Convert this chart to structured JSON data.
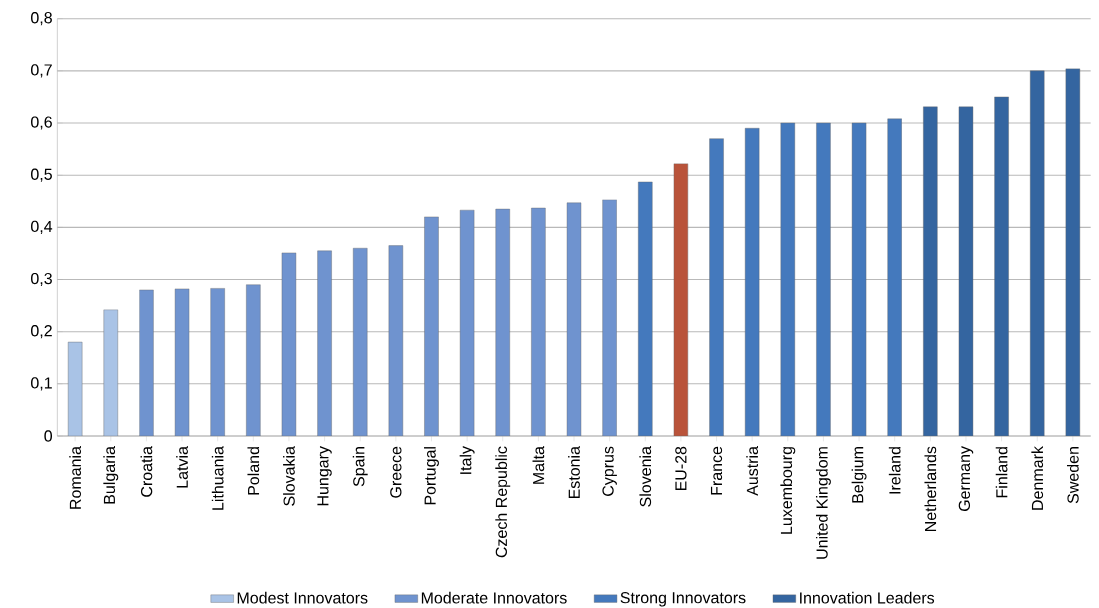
{
  "chart_data": {
    "type": "bar",
    "categories": [
      "Romania",
      "Bulgaria",
      "Croatia",
      "Latvia",
      "Lithuania",
      "Poland",
      "Slovakia",
      "Hungary",
      "Spain",
      "Greece",
      "Portugal",
      "Italy",
      "Czech Republic",
      "Malta",
      "Estonia",
      "Cyprus",
      "Slovenia",
      "EU-28",
      "France",
      "Austria",
      "Luxembourg",
      "United Kingdom",
      "Belgium",
      "Ireland",
      "Netherlands",
      "Germany",
      "Finland",
      "Denmark",
      "Sweden"
    ],
    "series": [
      {
        "name": "Modest Innovators",
        "color": "#a9c3e6",
        "values": [
          0.18,
          0.242,
          null,
          null,
          null,
          null,
          null,
          null,
          null,
          null,
          null,
          null,
          null,
          null,
          null,
          null,
          null,
          null,
          null,
          null,
          null,
          null,
          null,
          null,
          null,
          null,
          null,
          null,
          null
        ]
      },
      {
        "name": "Moderate Innovators",
        "color": "#6f93cf",
        "values": [
          null,
          null,
          0.28,
          0.282,
          0.283,
          0.29,
          0.351,
          0.355,
          0.36,
          0.365,
          0.42,
          0.433,
          0.435,
          0.437,
          0.447,
          0.453,
          null,
          null,
          null,
          null,
          null,
          null,
          null,
          null,
          null,
          null,
          null,
          null,
          null
        ]
      },
      {
        "name": "Strong Innovators",
        "color": "#4479bd",
        "values": [
          null,
          null,
          null,
          null,
          null,
          null,
          null,
          null,
          null,
          null,
          null,
          null,
          null,
          null,
          null,
          null,
          0.487,
          null,
          0.57,
          0.59,
          0.6,
          0.6,
          0.6,
          0.608,
          null,
          null,
          null,
          null,
          null
        ]
      },
      {
        "name": "Innovation Leaders",
        "color": "#3465a0",
        "values": [
          null,
          null,
          null,
          null,
          null,
          null,
          null,
          null,
          null,
          null,
          null,
          null,
          null,
          null,
          null,
          null,
          null,
          null,
          null,
          null,
          null,
          null,
          null,
          null,
          0.631,
          0.631,
          0.65,
          0.7,
          0.704
        ]
      },
      {
        "color": "#b9533a",
        "values": [
          null,
          null,
          null,
          null,
          null,
          null,
          null,
          null,
          null,
          null,
          null,
          null,
          null,
          null,
          null,
          null,
          null,
          0.522,
          null,
          null,
          null,
          null,
          null,
          null,
          null,
          null,
          null,
          null,
          null
        ]
      }
    ],
    "ylim": [
      0,
      0.8
    ],
    "yticks": [
      0,
      {
        "value": 0.1,
        "label": "0,1"
      },
      {
        "value": 0.2,
        "label": "0,2"
      },
      {
        "value": 0.3,
        "label": "0,3"
      },
      {
        "value": 0.4,
        "label": "0,4"
      },
      {
        "value": 0.5,
        "label": "0,5"
      },
      {
        "value": 0.6,
        "label": "0,6"
      },
      {
        "value": 0.7,
        "label": "0,7"
      },
      {
        "value": 0.8,
        "label": "0,8"
      }
    ],
    "grid": "y",
    "legend": "bottom"
  }
}
